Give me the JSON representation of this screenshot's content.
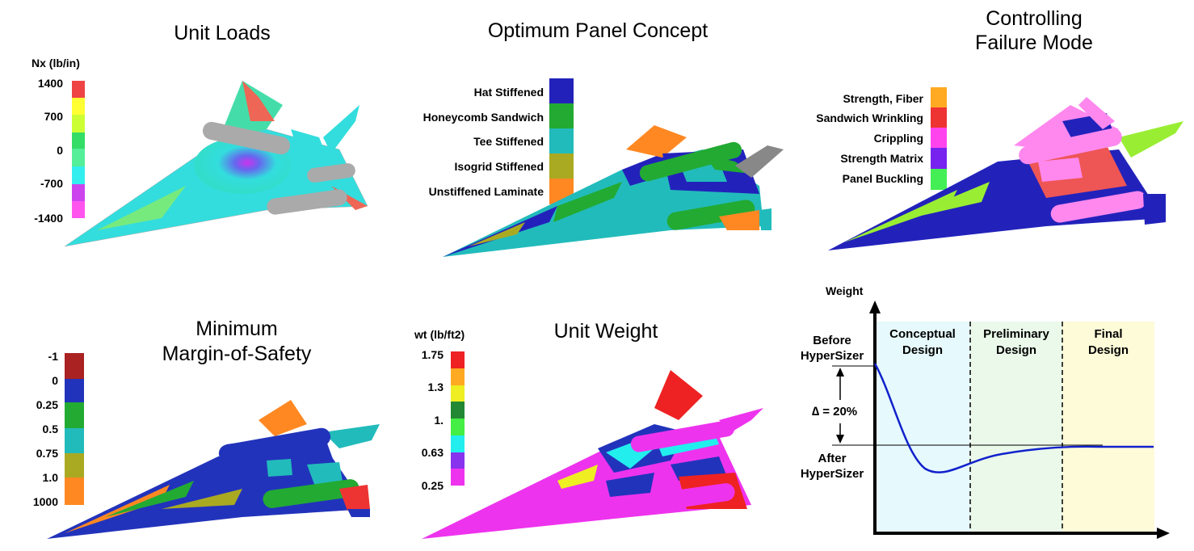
{
  "panels": {
    "unit_loads": {
      "title": "Unit Loads",
      "units": "Nx (lb/in)",
      "ticks": [
        "1400",
        "700",
        "0",
        "-700",
        "-1400"
      ],
      "colors": [
        "#ee4444",
        "#ffff33",
        "#33dd66",
        "#33eeee",
        "#cc44ee"
      ]
    },
    "panel_concept": {
      "title": "Optimum Panel Concept",
      "items": [
        {
          "label": "Hat Stiffened",
          "color": "#2222bb"
        },
        {
          "label": "Honeycomb Sandwich",
          "color": "#22aa33"
        },
        {
          "label": "Tee Stiffened",
          "color": "#22bbbb"
        },
        {
          "label": "Isogrid Stiffened",
          "color": "#aaaa22"
        },
        {
          "label": "Unstiffened Laminate",
          "color": "#ff8822"
        }
      ]
    },
    "failure_mode": {
      "title_line1": "Controlling",
      "title_line2": "Failure Mode",
      "items": [
        {
          "label": "Strength, Fiber",
          "color": "#ffaa22"
        },
        {
          "label": "Sandwich Wrinkling",
          "color": "#ee3333"
        },
        {
          "label": "Crippling",
          "color": "#ff44ee"
        },
        {
          "label": "Strength Matrix",
          "color": "#7722ee"
        },
        {
          "label": "Panel Buckling",
          "color": "#44ee55"
        }
      ]
    },
    "margin_safety": {
      "title_line1": "Minimum",
      "title_line2": "Margin-of-Safety",
      "ticks": [
        "-1",
        "0",
        "0.25",
        "0.5",
        "0.75",
        "1.0",
        "1000"
      ],
      "colors": [
        "#aa2222",
        "#2233bb",
        "#22aa33",
        "#22bbbb",
        "#aaaa22",
        "#ff8822"
      ]
    },
    "unit_weight": {
      "title": "Unit Weight",
      "units": "wt (lb/ft2)",
      "ticks": [
        "1.75",
        "1.3",
        "1.",
        "0.63",
        "0.25"
      ],
      "colors": [
        "#ee2222",
        "#ffaa22",
        "#eeee22",
        "#228833",
        "#44ee44",
        "#22eeee",
        "#8833ee",
        "#ee33ee"
      ]
    },
    "weight_chart": {
      "ylabel": "Weight",
      "before_line1": "Before",
      "before_line2": "HyperSizer",
      "after_line1": "After",
      "after_line2": "HyperSizer",
      "delta": "∆ = 20%",
      "phases": [
        {
          "line1": "Conceptual",
          "line2": "Design",
          "color": "#e6f9fc"
        },
        {
          "line1": "Preliminary",
          "line2": "Design",
          "color": "#eaf9ea"
        },
        {
          "line1": "Final",
          "line2": "Design",
          "color": "#fdfbd8"
        }
      ]
    }
  }
}
